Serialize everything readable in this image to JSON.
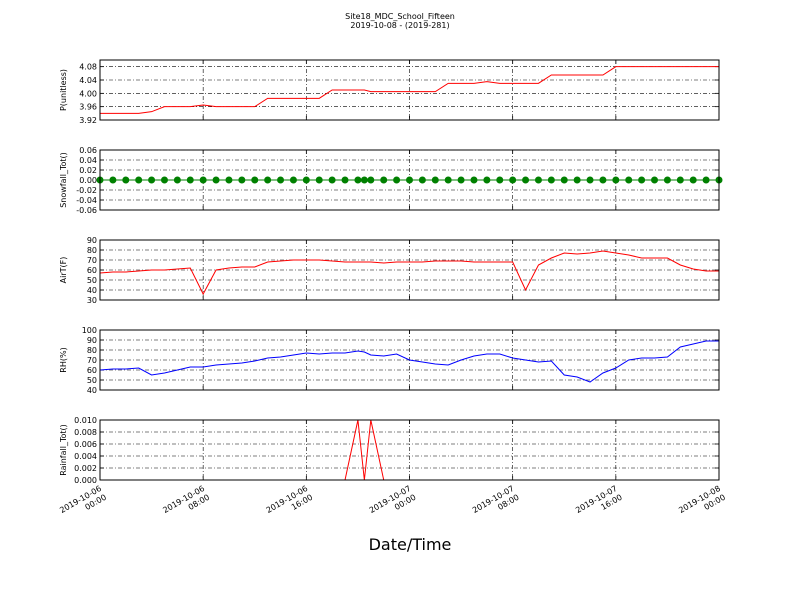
{
  "chart_data": {
    "type": "line",
    "title": "Site18_MDC_School_Fifteen",
    "subtitle": "2019-10-08 - (2019-281)",
    "xlabel": "Date/Time",
    "grid": true,
    "x": [
      "2019-10-06 00:00",
      "2019-10-06 01:00",
      "2019-10-06 02:00",
      "2019-10-06 03:00",
      "2019-10-06 04:00",
      "2019-10-06 05:00",
      "2019-10-06 06:00",
      "2019-10-06 07:00",
      "2019-10-06 08:00",
      "2019-10-06 09:00",
      "2019-10-06 10:00",
      "2019-10-06 11:00",
      "2019-10-06 12:00",
      "2019-10-06 13:00",
      "2019-10-06 14:00",
      "2019-10-06 15:00",
      "2019-10-06 16:00",
      "2019-10-06 17:00",
      "2019-10-06 18:00",
      "2019-10-06 19:00",
      "2019-10-06 20:00",
      "2019-10-06 20:30",
      "2019-10-06 21:00",
      "2019-10-06 22:00",
      "2019-10-06 23:00",
      "2019-10-07 00:00",
      "2019-10-07 01:00",
      "2019-10-07 02:00",
      "2019-10-07 03:00",
      "2019-10-07 04:00",
      "2019-10-07 05:00",
      "2019-10-07 06:00",
      "2019-10-07 07:00",
      "2019-10-07 08:00",
      "2019-10-07 09:00",
      "2019-10-07 10:00",
      "2019-10-07 11:00",
      "2019-10-07 12:00",
      "2019-10-07 13:00",
      "2019-10-07 14:00",
      "2019-10-07 15:00",
      "2019-10-07 16:00",
      "2019-10-07 17:00",
      "2019-10-07 18:00",
      "2019-10-07 19:00",
      "2019-10-07 20:00",
      "2019-10-07 21:00",
      "2019-10-07 22:00",
      "2019-10-07 23:00",
      "2019-10-08 00:00"
    ],
    "xlim": [
      "2019-10-06 00:00",
      "2019-10-08 00:00"
    ],
    "xticks": [
      "2019-10-06 00:00",
      "2019-10-06 08:00",
      "2019-10-06 16:00",
      "2019-10-07 00:00",
      "2019-10-07 08:00",
      "2019-10-07 16:00",
      "2019-10-08 00:00"
    ],
    "panels": [
      {
        "ylabel": "P(unitless)",
        "ylim": [
          3.92,
          4.1
        ],
        "yticks": [
          3.92,
          3.96,
          {
            "value": 4,
            "label": "4.00"
          },
          4.04,
          4.08
        ],
        "series": [
          {
            "color": "#ff0000",
            "marker": false,
            "values": [
              3.94,
              3.94,
              3.94,
              3.94,
              3.945,
              3.96,
              3.96,
              3.96,
              3.965,
              3.96,
              3.96,
              3.96,
              3.96,
              3.985,
              3.985,
              3.985,
              3.985,
              3.985,
              4.01,
              4.01,
              4.01,
              4.01,
              4.005,
              4.005,
              4.005,
              4.005,
              4.005,
              4.005,
              4.03,
              4.03,
              4.03,
              4.035,
              4.03,
              4.03,
              4.03,
              4.03,
              4.055,
              4.055,
              4.055,
              4.055,
              4.055,
              4.08,
              4.08,
              4.08,
              4.08,
              4.08,
              4.08,
              4.08,
              4.08,
              4.08
            ]
          }
        ]
      },
      {
        "ylabel": "Snowfall_Tot()",
        "ylim": [
          -0.06,
          0.06
        ],
        "yticks": [
          -0.06,
          -0.04,
          -0.02,
          {
            "value": 0,
            "label": "0.00"
          },
          0.02,
          0.04,
          0.06
        ],
        "series": [
          {
            "color": "#008000",
            "marker": true,
            "values": [
              0,
              0,
              0,
              0,
              0,
              0,
              0,
              0,
              0,
              0,
              0,
              0,
              0,
              0,
              0,
              0,
              0,
              0,
              0,
              0,
              0,
              0,
              0,
              0,
              0,
              0,
              0,
              0,
              0,
              0,
              0,
              0,
              0,
              0,
              0,
              0,
              0,
              0,
              0,
              0,
              0,
              0,
              0,
              0,
              0,
              0,
              0,
              0,
              0,
              0
            ]
          }
        ]
      },
      {
        "ylabel": "AirT(F)",
        "ylim": [
          30,
          90
        ],
        "yticks": [
          30,
          40,
          50,
          60,
          70,
          80,
          90
        ],
        "series": [
          {
            "color": "#ff0000",
            "marker": false,
            "values": [
              57,
              58,
              58,
              59,
              60,
              60,
              61,
              62,
              36,
              60,
              62,
              63,
              63,
              68,
              69,
              70,
              70,
              70,
              69,
              68,
              68,
              68,
              68,
              67,
              68,
              68,
              68,
              69,
              69,
              69,
              68,
              68,
              68,
              68,
              40,
              65,
              72,
              77,
              76,
              77,
              79,
              77,
              75,
              72,
              72,
              72,
              65,
              61,
              59,
              59
            ]
          }
        ]
      },
      {
        "ylabel": "RH(%)",
        "ylim": [
          40,
          100
        ],
        "yticks": [
          40,
          50,
          60,
          70,
          80,
          90,
          100
        ],
        "series": [
          {
            "color": "#0000ff",
            "marker": false,
            "values": [
              60,
              61,
              61,
              62,
              55,
              57,
              60,
              63,
              63,
              65,
              66,
              67,
              69,
              72,
              73,
              75,
              77,
              76,
              77,
              77,
              79,
              78,
              75,
              74,
              76,
              70,
              68,
              66,
              65,
              70,
              74,
              76,
              76,
              72,
              70,
              68,
              69,
              55,
              53,
              48,
              57,
              62,
              70,
              72,
              72,
              73,
              83,
              86,
              89,
              89
            ]
          }
        ]
      },
      {
        "ylabel": "Rainfall_Tot()",
        "ylim": [
          0,
          0.01
        ],
        "yticks": [
          {
            "value": 0,
            "label": "0.000"
          },
          {
            "value": 0.002,
            "label": "0.002"
          },
          {
            "value": 0.004,
            "label": "0.004"
          },
          {
            "value": 0.006,
            "label": "0.006"
          },
          {
            "value": 0.008,
            "label": "0.008"
          },
          {
            "value": 0.01,
            "label": "0.010"
          }
        ],
        "series": [
          {
            "color": "#ff0000",
            "marker": false,
            "values": [
              0,
              0,
              0,
              0,
              0,
              0,
              0,
              0,
              0,
              0,
              0,
              0,
              0,
              0,
              0,
              0,
              0,
              0,
              0,
              0,
              0.01,
              0,
              0.01,
              0,
              0,
              0,
              0,
              0,
              0,
              0,
              0,
              0,
              0,
              0,
              0,
              0,
              0,
              0,
              0,
              0,
              0,
              0,
              0,
              0,
              0,
              0,
              0,
              0,
              0,
              0
            ]
          }
        ]
      }
    ]
  }
}
